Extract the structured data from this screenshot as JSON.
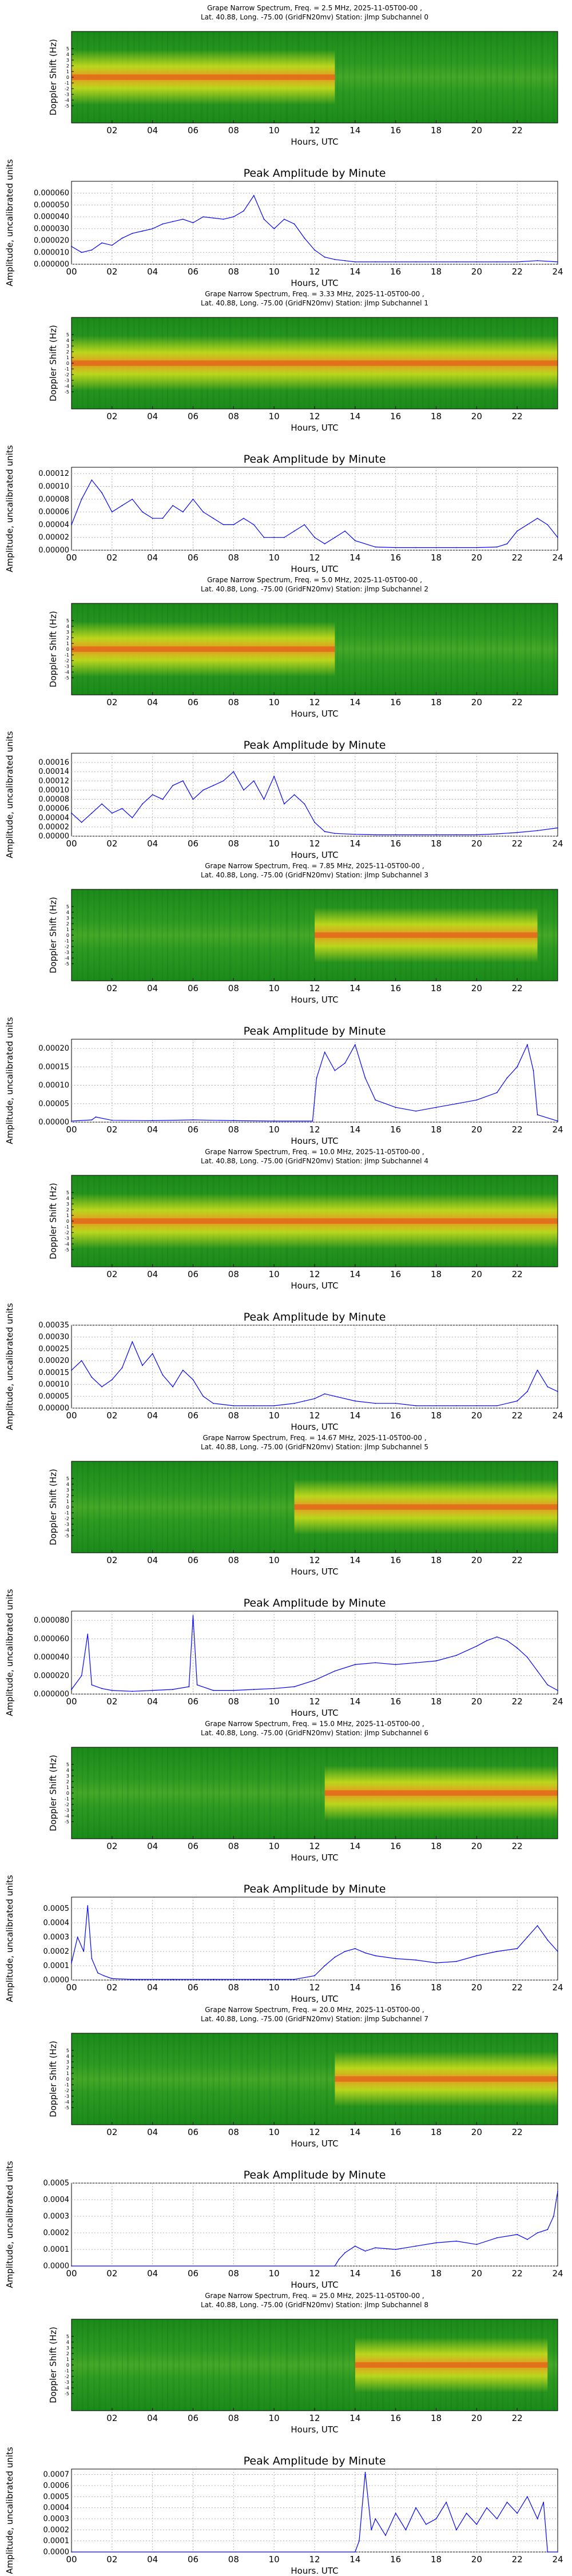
{
  "figure": {
    "spec_title_template": "Grape Narrow Spectrum, Freq. = {freq} MHz, 2025-11-05T00-00 ,",
    "spec_subtitle_template": "Lat.  40.88, Long. -75.00 (GridFN20mv) Station: jlmp Subchannel {sub}",
    "spec_ylabel": "Doppler Shift (Hz)",
    "spec_yticks": [
      "-5",
      "-4",
      "-3",
      "-2",
      "-1",
      "0",
      "1",
      "2",
      "3",
      "4",
      "5"
    ],
    "spec_xticks": [
      "02",
      "04",
      "06",
      "08",
      "10",
      "12",
      "14",
      "16",
      "18",
      "20",
      "22"
    ],
    "xlabel": "Hours, UTC",
    "amp_title": "Peak Amplitude by Minute",
    "amp_ylabel": "Amplitude, uncalibrated units",
    "amp_xticks": [
      "00",
      "02",
      "04",
      "06",
      "08",
      "10",
      "12",
      "14",
      "16",
      "18",
      "20",
      "22",
      "24"
    ]
  },
  "colors": {
    "line": "#0000ff",
    "spec_low": "#1f8a1f",
    "spec_mid": "#e7e91a",
    "spec_high": "#e0501a",
    "grid": "#b0b0b0"
  },
  "chart_data": [
    {
      "type": "heatmap",
      "title": "Grape Narrow Spectrum, Freq. = 2.5 MHz, 2025-11-05T00-00 ,",
      "subtitle": "Lat.  40.88, Long. -75.00 (GridFN20mv) Station: jlmp Subchannel 0",
      "xlabel": "Hours, UTC",
      "ylabel": "Doppler Shift (Hz)",
      "xlim": [
        0,
        24
      ],
      "ylim": [
        -5,
        5
      ],
      "activity": [
        0,
        13
      ]
    },
    {
      "type": "line",
      "title": "Peak Amplitude by Minute",
      "xlabel": "Hours, UTC",
      "ylabel": "Amplitude, uncalibrated units",
      "xlim": [
        0,
        24
      ],
      "ylim": [
        0,
        7e-05
      ],
      "yticks": [
        "0.000000",
        "0.000010",
        "0.000020",
        "0.000030",
        "0.000040",
        "0.000050",
        "0.000060"
      ],
      "x": [
        0,
        0.5,
        1,
        1.5,
        2,
        2.5,
        3,
        3.5,
        4,
        4.5,
        5,
        5.5,
        6,
        6.5,
        7,
        7.5,
        8,
        8.5,
        9,
        9.5,
        10,
        10.5,
        11,
        11.5,
        12,
        12.5,
        13,
        13.5,
        14,
        15,
        16,
        17,
        18,
        19,
        20,
        21,
        22,
        23,
        24
      ],
      "y": [
        1.5e-05,
        1e-05,
        1.2e-05,
        1.8e-05,
        1.6e-05,
        2.2e-05,
        2.6e-05,
        2.8e-05,
        3e-05,
        3.4e-05,
        3.6e-05,
        3.8e-05,
        3.5e-05,
        4e-05,
        3.9e-05,
        3.8e-05,
        4e-05,
        4.5e-05,
        5.8e-05,
        3.8e-05,
        3e-05,
        3.8e-05,
        3.4e-05,
        2.2e-05,
        1.2e-05,
        6e-06,
        4e-06,
        3e-06,
        2e-06,
        2e-06,
        2e-06,
        2e-06,
        2e-06,
        2e-06,
        2e-06,
        2e-06,
        2e-06,
        3e-06,
        2e-06
      ]
    },
    {
      "type": "heatmap",
      "title": "Grape Narrow Spectrum, Freq. = 3.33 MHz, 2025-11-05T00-00 ,",
      "subtitle": "Lat.  40.88, Long. -75.00 (GridFN20mv) Station: jlmp Subchannel 1",
      "xlabel": "Hours, UTC",
      "ylabel": "Doppler Shift (Hz)",
      "xlim": [
        0,
        24
      ],
      "ylim": [
        -5,
        5
      ],
      "activity": [
        0,
        24
      ]
    },
    {
      "type": "line",
      "title": "Peak Amplitude by Minute",
      "xlabel": "Hours, UTC",
      "ylabel": "Amplitude, uncalibrated units",
      "xlim": [
        0,
        24
      ],
      "ylim": [
        0,
        0.00013
      ],
      "yticks": [
        "0.00000",
        "0.00002",
        "0.00004",
        "0.00006",
        "0.00008",
        "0.00010",
        "0.00012"
      ],
      "x": [
        0,
        0.5,
        1,
        1.5,
        2,
        2.5,
        3,
        3.5,
        4,
        4.5,
        5,
        5.5,
        6,
        6.5,
        7,
        7.5,
        8,
        8.5,
        9,
        9.5,
        10,
        10.5,
        11,
        11.5,
        12,
        12.5,
        13,
        13.5,
        14,
        15,
        16,
        17,
        18,
        19,
        20,
        21,
        21.5,
        22,
        22.5,
        23,
        23.5,
        24
      ],
      "y": [
        4e-05,
        8e-05,
        0.00011,
        9e-05,
        6e-05,
        7e-05,
        8e-05,
        6e-05,
        5e-05,
        5e-05,
        7e-05,
        6e-05,
        8e-05,
        6e-05,
        5e-05,
        4e-05,
        4e-05,
        5e-05,
        4e-05,
        2e-05,
        2e-05,
        2e-05,
        3e-05,
        4e-05,
        2e-05,
        1e-05,
        2e-05,
        3e-05,
        1.5e-05,
        5e-06,
        4e-06,
        4e-06,
        4e-06,
        4e-06,
        4e-06,
        5e-06,
        1e-05,
        3e-05,
        4e-05,
        5e-05,
        4e-05,
        2e-05
      ]
    },
    {
      "type": "heatmap",
      "title": "Grape Narrow Spectrum, Freq. = 5.0 MHz, 2025-11-05T00-00 ,",
      "subtitle": "Lat.  40.88, Long. -75.00 (GridFN20mv) Station: jlmp Subchannel 2",
      "xlabel": "Hours, UTC",
      "ylabel": "Doppler Shift (Hz)",
      "xlim": [
        0,
        24
      ],
      "ylim": [
        -5,
        5
      ],
      "activity": [
        0,
        13
      ]
    },
    {
      "type": "line",
      "title": "Peak Amplitude by Minute",
      "xlabel": "Hours, UTC",
      "ylabel": "Amplitude, uncalibrated units",
      "xlim": [
        0,
        24
      ],
      "ylim": [
        0,
        0.00018
      ],
      "yticks": [
        "0.00000",
        "0.00002",
        "0.00004",
        "0.00006",
        "0.00008",
        "0.00010",
        "0.00012",
        "0.00014",
        "0.00016"
      ],
      "x": [
        0,
        0.5,
        1,
        1.5,
        2,
        2.5,
        3,
        3.5,
        4,
        4.5,
        5,
        5.5,
        6,
        6.5,
        7,
        7.5,
        8,
        8.5,
        9,
        9.5,
        10,
        10.5,
        11,
        11.5,
        12,
        12.5,
        13,
        14,
        15,
        16,
        17,
        18,
        19,
        20,
        21,
        22,
        23,
        24
      ],
      "y": [
        5e-05,
        3e-05,
        5e-05,
        7e-05,
        5e-05,
        6e-05,
        4e-05,
        7e-05,
        9e-05,
        8e-05,
        0.00011,
        0.00012,
        8e-05,
        0.0001,
        0.00011,
        0.00012,
        0.00014,
        0.0001,
        0.00012,
        8e-05,
        0.00013,
        7e-05,
        9e-05,
        7e-05,
        3e-05,
        1e-05,
        6e-06,
        4e-06,
        3e-06,
        3e-06,
        3e-06,
        3e-06,
        3e-06,
        3e-06,
        5e-06,
        8e-06,
        1.2e-05,
        1.8e-05
      ]
    },
    {
      "type": "heatmap",
      "title": "Grape Narrow Spectrum, Freq. = 7.85 MHz, 2025-11-05T00-00 ,",
      "subtitle": "Lat.  40.88, Long. -75.00 (GridFN20mv) Station: jlmp Subchannel 3",
      "xlabel": "Hours, UTC",
      "ylabel": "Doppler Shift (Hz)",
      "xlim": [
        0,
        24
      ],
      "ylim": [
        -5,
        5
      ],
      "activity": [
        12,
        23
      ]
    },
    {
      "type": "line",
      "title": "Peak Amplitude by Minute",
      "xlabel": "Hours, UTC",
      "ylabel": "Amplitude, uncalibrated units",
      "xlim": [
        0,
        24
      ],
      "ylim": [
        0,
        0.000225
      ],
      "yticks": [
        "0.00000",
        "0.00005",
        "0.00010",
        "0.00015",
        "0.00020"
      ],
      "x": [
        0,
        1,
        1.2,
        2,
        4,
        6,
        8,
        10,
        11.9,
        12.1,
        12.5,
        13,
        13.5,
        14,
        14.5,
        15,
        16,
        17,
        18,
        19,
        20,
        21,
        21.5,
        22,
        22.5,
        22.8,
        23,
        24
      ],
      "y": [
        3e-06,
        6e-06,
        1.4e-05,
        5e-06,
        4e-06,
        6e-06,
        4e-06,
        3e-06,
        3e-06,
        0.00012,
        0.00019,
        0.00014,
        0.00016,
        0.00021,
        0.00012,
        6e-05,
        4e-05,
        3e-05,
        4e-05,
        5e-05,
        6e-05,
        8e-05,
        0.00012,
        0.00015,
        0.00021,
        0.00014,
        2e-05,
        3e-06
      ]
    },
    {
      "type": "heatmap",
      "title": "Grape Narrow Spectrum, Freq. = 10.0 MHz, 2025-11-05T00-00 ,",
      "subtitle": "Lat.  40.88, Long. -75.00 (GridFN20mv) Station: jlmp Subchannel 4",
      "xlabel": "Hours, UTC",
      "ylabel": "Doppler Shift (Hz)",
      "xlim": [
        0,
        24
      ],
      "ylim": [
        -5,
        5
      ],
      "activity": [
        0,
        24
      ]
    },
    {
      "type": "line",
      "title": "Peak Amplitude by Minute",
      "xlabel": "Hours, UTC",
      "ylabel": "Amplitude, uncalibrated units",
      "xlim": [
        0,
        24
      ],
      "ylim": [
        0,
        0.00035
      ],
      "yticks": [
        "0.00000",
        "0.00005",
        "0.00010",
        "0.00015",
        "0.00020",
        "0.00025",
        "0.00030",
        "0.00035"
      ],
      "x": [
        0,
        0.5,
        1,
        1.5,
        2,
        2.5,
        3,
        3.5,
        4,
        4.5,
        5,
        5.5,
        6,
        6.5,
        7,
        8,
        9,
        10,
        11,
        11.5,
        12,
        12.5,
        13,
        14,
        15,
        16,
        17,
        18,
        19,
        20,
        21,
        22,
        22.5,
        23,
        23.5,
        24
      ],
      "y": [
        0.00016,
        0.0002,
        0.00013,
        9e-05,
        0.00012,
        0.00017,
        0.00028,
        0.00018,
        0.00023,
        0.00014,
        9e-05,
        0.00016,
        0.00012,
        5e-05,
        2e-05,
        1e-05,
        1e-05,
        1e-05,
        2e-05,
        3e-05,
        4e-05,
        6e-05,
        5e-05,
        3e-05,
        2e-05,
        2e-05,
        1e-05,
        1e-05,
        1e-05,
        1e-05,
        1e-05,
        3e-05,
        7e-05,
        0.00016,
        9e-05,
        7e-05
      ]
    },
    {
      "type": "heatmap",
      "title": "Grape Narrow Spectrum, Freq. = 14.67 MHz, 2025-11-05T00-00 ,",
      "subtitle": "Lat.  40.88, Long. -75.00 (GridFN20mv) Station: jlmp Subchannel 5",
      "xlabel": "Hours, UTC",
      "ylabel": "Doppler Shift (Hz)",
      "xlim": [
        0,
        24
      ],
      "ylim": [
        -5,
        5
      ],
      "activity": [
        11,
        24
      ]
    },
    {
      "type": "line",
      "title": "Peak Amplitude by Minute",
      "xlabel": "Hours, UTC",
      "ylabel": "Amplitude, uncalibrated units",
      "xlim": [
        0,
        24
      ],
      "ylim": [
        0,
        9e-05
      ],
      "yticks": [
        "0.000000",
        "0.000020",
        "0.000040",
        "0.000060",
        "0.000080"
      ],
      "x": [
        0,
        0.5,
        0.8,
        1,
        1.5,
        2,
        3,
        4,
        5,
        5.8,
        6,
        6.2,
        7,
        8,
        9,
        10,
        11,
        12,
        13,
        14,
        15,
        16,
        17,
        18,
        19,
        20,
        20.5,
        21,
        21.5,
        22,
        22.5,
        23,
        23.5,
        24
      ],
      "y": [
        5e-06,
        2e-05,
        6.5e-05,
        1e-05,
        6e-06,
        4e-06,
        3e-06,
        4e-06,
        5e-06,
        8e-06,
        8.5e-05,
        1e-05,
        4e-06,
        4e-06,
        5e-06,
        6e-06,
        8e-06,
        1.5e-05,
        2.5e-05,
        3.2e-05,
        3.4e-05,
        3.2e-05,
        3.4e-05,
        3.6e-05,
        4.2e-05,
        5.2e-05,
        5.8e-05,
        6.2e-05,
        5.8e-05,
        5e-05,
        4e-05,
        2.5e-05,
        1e-05,
        4e-06
      ]
    },
    {
      "type": "heatmap",
      "title": "Grape Narrow Spectrum, Freq. = 15.0 MHz, 2025-11-05T00-00 ,",
      "subtitle": "Lat.  40.88, Long. -75.00 (GridFN20mv) Station: jlmp Subchannel 6",
      "xlabel": "Hours, UTC",
      "ylabel": "Doppler Shift (Hz)",
      "xlim": [
        0,
        24
      ],
      "ylim": [
        -5,
        5
      ],
      "activity": [
        12.5,
        24
      ]
    },
    {
      "type": "line",
      "title": "Peak Amplitude by Minute",
      "xlabel": "Hours, UTC",
      "ylabel": "Amplitude, uncalibrated units",
      "xlim": [
        0,
        24
      ],
      "ylim": [
        0,
        0.00058
      ],
      "yticks": [
        "0.0000",
        "0.0001",
        "0.0002",
        "0.0003",
        "0.0004",
        "0.0005"
      ],
      "x": [
        0,
        0.3,
        0.6,
        0.8,
        1,
        1.3,
        1.6,
        2,
        3,
        5,
        7,
        9,
        11,
        12,
        12.5,
        13,
        13.5,
        14,
        14.5,
        15,
        16,
        17,
        18,
        19,
        20,
        21,
        22,
        22.5,
        23,
        23.5,
        24
      ],
      "y": [
        0.00012,
        0.0003,
        0.0002,
        0.00052,
        0.00015,
        5e-05,
        3e-05,
        1e-05,
        5e-06,
        5e-06,
        5e-06,
        5e-06,
        5e-06,
        3e-05,
        0.0001,
        0.00016,
        0.0002,
        0.00022,
        0.00019,
        0.00017,
        0.00015,
        0.00014,
        0.00012,
        0.00013,
        0.00017,
        0.0002,
        0.00022,
        0.0003,
        0.00038,
        0.00028,
        0.0002
      ]
    },
    {
      "type": "heatmap",
      "title": "Grape Narrow Spectrum, Freq. = 20.0 MHz, 2025-11-05T00-00 ,",
      "subtitle": "Lat.  40.88, Long. -75.00 (GridFN20mv) Station: jlmp Subchannel 7",
      "xlabel": "Hours, UTC",
      "ylabel": "Doppler Shift (Hz)",
      "xlim": [
        0,
        24
      ],
      "ylim": [
        -5,
        5
      ],
      "activity": [
        13,
        24
      ]
    },
    {
      "type": "line",
      "title": "Peak Amplitude by Minute",
      "xlabel": "Hours, UTC",
      "ylabel": "Amplitude, uncalibrated units",
      "xlim": [
        0,
        24
      ],
      "ylim": [
        0,
        0.0005
      ],
      "yticks": [
        "0.0000",
        "0.0001",
        "0.0002",
        "0.0003",
        "0.0004",
        "0.0005"
      ],
      "x": [
        0,
        13,
        13.2,
        13.5,
        14,
        14.5,
        15,
        16,
        17,
        18,
        19,
        20,
        21,
        22,
        22.5,
        23,
        23.5,
        23.8,
        24
      ],
      "y": [
        0,
        0,
        4e-05,
        8e-05,
        0.00012,
        9e-05,
        0.00011,
        0.0001,
        0.00012,
        0.00014,
        0.00015,
        0.00013,
        0.00017,
        0.00019,
        0.00016,
        0.0002,
        0.00022,
        0.0003,
        0.00045
      ]
    },
    {
      "type": "heatmap",
      "title": "Grape Narrow Spectrum, Freq. = 25.0 MHz, 2025-11-05T00-00 ,",
      "subtitle": "Lat.  40.88, Long. -75.00 (GridFN20mv) Station: jlmp Subchannel 8",
      "xlabel": "Hours, UTC",
      "ylabel": "Doppler Shift (Hz)",
      "xlim": [
        0,
        24
      ],
      "ylim": [
        -5,
        5
      ],
      "activity": [
        14,
        23.5
      ]
    },
    {
      "type": "line",
      "title": "Peak Amplitude by Minute",
      "xlabel": "Hours, UTC",
      "ylabel": "Amplitude, uncalibrated units",
      "xlim": [
        0,
        24
      ],
      "ylim": [
        0,
        0.00075
      ],
      "yticks": [
        "0.0000",
        "0.0001",
        "0.0002",
        "0.0003",
        "0.0004",
        "0.0005",
        "0.0006",
        "0.0007"
      ],
      "x": [
        0,
        14,
        14.2,
        14.5,
        14.8,
        15,
        15.5,
        16,
        16.5,
        17,
        17.5,
        18,
        18.5,
        19,
        19.5,
        20,
        20.5,
        21,
        21.5,
        22,
        22.5,
        23,
        23.3,
        23.5,
        24
      ],
      "y": [
        0,
        0,
        0.0001,
        0.00072,
        0.0002,
        0.0003,
        0.00015,
        0.00035,
        0.0002,
        0.0004,
        0.00025,
        0.0003,
        0.00045,
        0.0002,
        0.00035,
        0.00025,
        0.0004,
        0.0003,
        0.00045,
        0.00035,
        0.0005,
        0.0003,
        0.00045,
        0,
        0
      ]
    }
  ]
}
